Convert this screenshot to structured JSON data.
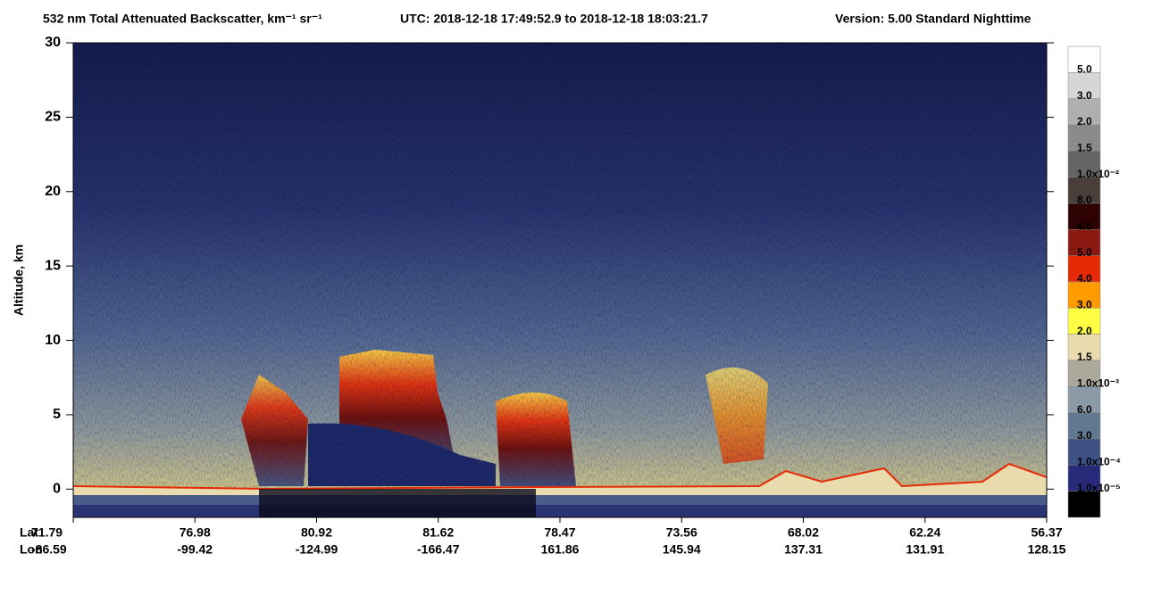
{
  "chart_data": {
    "type": "curtain",
    "title": "532 nm Total Attenuated Backscatter, km⁻¹ sr⁻¹",
    "time_range": "UTC:  2018-12-18 17:49:52.9  to  2018-12-18 18:03:21.7",
    "version": "Version: 5.00  Standard  Nighttime",
    "y_label": "Altitude, km",
    "ylim": [
      -1.9,
      30
    ],
    "yticks": [
      0,
      5,
      10,
      15,
      20,
      25,
      30
    ],
    "x_row_labels": [
      "Lat",
      "Lon"
    ],
    "lat": [
      "71.79",
      "76.98",
      "80.92",
      "81.62",
      "78.47",
      "73.56",
      "68.02",
      "62.24",
      "56.37"
    ],
    "lon": [
      "-86.59",
      "-99.42",
      "-124.99",
      "-166.47",
      "161.86",
      "145.94",
      "137.31",
      "131.91",
      "128.15"
    ],
    "colorbar": {
      "colors": [
        "#ffffff",
        "#d6d6d6",
        "#afafaf",
        "#8b8b8b",
        "#646464",
        "#4a3e3a",
        "#2e0202",
        "#8a1a12",
        "#e62a06",
        "#ff9a00",
        "#ffff44",
        "#e9dbad",
        "#aaa99c",
        "#8c9aa7",
        "#617990",
        "#3d5184",
        "#272a78",
        "#000000"
      ],
      "labels": [
        "5.0",
        "3.0",
        "2.0",
        "1.5",
        "1.0x10⁻²",
        "8.0",
        "6.0",
        "5.0",
        "4.0",
        "3.0",
        "2.0",
        "1.5",
        "1.0x10⁻³",
        "6.0",
        "3.0",
        "1.0x10⁻⁴",
        "1.0x10⁻⁵"
      ]
    }
  }
}
